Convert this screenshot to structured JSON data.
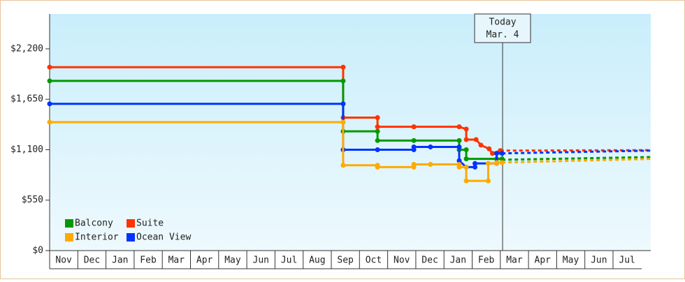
{
  "chart_data": {
    "type": "step-line",
    "xlim": [
      0,
      21.34
    ],
    "xticks": [
      {
        "value": 0,
        "label": "Nov"
      },
      {
        "value": 1,
        "label": "Dec"
      },
      {
        "value": 2,
        "label": "Jan"
      },
      {
        "value": 3,
        "label": "Feb"
      },
      {
        "value": 4,
        "label": "Mar"
      },
      {
        "value": 5,
        "label": "Apr"
      },
      {
        "value": 6,
        "label": "May"
      },
      {
        "value": 7,
        "label": "Jun"
      },
      {
        "value": 8,
        "label": "Jul"
      },
      {
        "value": 9,
        "label": "Aug"
      },
      {
        "value": 10,
        "label": "Sep"
      },
      {
        "value": 11,
        "label": "Oct"
      },
      {
        "value": 12,
        "label": "Nov"
      },
      {
        "value": 13,
        "label": "Dec"
      },
      {
        "value": 14,
        "label": "Jan"
      },
      {
        "value": 15,
        "label": "Feb"
      },
      {
        "value": 16,
        "label": "Mar"
      },
      {
        "value": 17,
        "label": "Apr"
      },
      {
        "value": 18,
        "label": "May"
      },
      {
        "value": 19,
        "label": "Jun"
      },
      {
        "value": 20,
        "label": "Jul"
      }
    ],
    "ylim": [
      0,
      2580
    ],
    "yticks": [
      {
        "value": 0,
        "label": "$0"
      },
      {
        "value": 550,
        "label": "$550"
      },
      {
        "value": 1100,
        "label": "$1,100"
      },
      {
        "value": 1650,
        "label": "$1,650"
      },
      {
        "value": 2200,
        "label": "$2,200"
      }
    ],
    "today": {
      "x": 16.08,
      "label": [
        "Today",
        "Mar. 4"
      ]
    },
    "series": [
      {
        "name": "Suite",
        "color": "#ff3300",
        "x": [
          0,
          10.42,
          10.42,
          11.64,
          11.64,
          12.93,
          14.54,
          14.79,
          14.79,
          15.14,
          15.31,
          15.6,
          15.72,
          16.0
        ],
        "values": [
          2000,
          2000,
          1450,
          1450,
          1350,
          1350,
          1350,
          1325,
          1210,
          1210,
          1150,
          1110,
          1060,
          1090
        ],
        "forecast_x": [
          16.0,
          21.34
        ],
        "forecast_values": [
          1090,
          1095
        ]
      },
      {
        "name": "Balcony",
        "color": "#009900",
        "x": [
          0,
          10.42,
          10.42,
          11.64,
          11.64,
          12.93,
          14.54,
          14.54,
          14.79,
          14.79,
          15.87,
          16.06
        ],
        "values": [
          1850,
          1850,
          1300,
          1300,
          1200,
          1200,
          1200,
          1100,
          1100,
          1000,
          1000,
          1000
        ],
        "forecast_x": [
          16.06,
          21.34
        ],
        "forecast_values": [
          990,
          1020
        ]
      },
      {
        "name": "Ocean View",
        "color": "#0033ff",
        "x": [
          0,
          10.42,
          10.42,
          11.64,
          12.93,
          12.93,
          13.52,
          14.54,
          14.54,
          14.79,
          15.1,
          15.1,
          15.87,
          15.87,
          16.06
        ],
        "values": [
          1600,
          1600,
          1100,
          1100,
          1100,
          1130,
          1130,
          1130,
          980,
          910,
          910,
          950,
          950,
          1060,
          1060
        ],
        "forecast_x": [
          16.06,
          21.34
        ],
        "forecast_values": [
          1060,
          1090
        ]
      },
      {
        "name": "Interior",
        "color": "#ffaa00",
        "x": [
          0,
          10.42,
          10.42,
          11.64,
          11.64,
          12.93,
          12.93,
          13.52,
          14.54,
          14.54,
          14.79,
          14.79,
          15.57,
          15.57,
          15.87,
          15.87,
          16.06
        ],
        "values": [
          1400,
          1400,
          930,
          930,
          910,
          910,
          940,
          940,
          940,
          910,
          910,
          760,
          760,
          950,
          950,
          960,
          960
        ],
        "forecast_x": [
          16.06,
          21.34
        ],
        "forecast_values": [
          960,
          1000
        ]
      }
    ]
  }
}
